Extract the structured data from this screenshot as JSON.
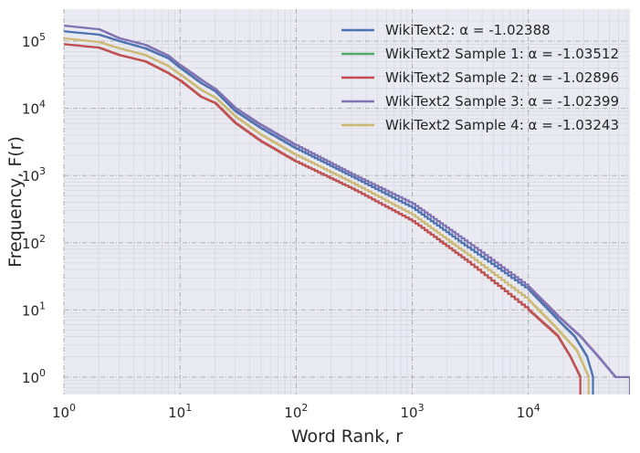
{
  "chart_data": {
    "type": "line",
    "title": "",
    "xlabel": "Word Rank, r",
    "ylabel": "Frequency, F(r)",
    "xscale": "log",
    "yscale": "log",
    "xlim": [
      1,
      75000
    ],
    "ylim": [
      0.55,
      300000
    ],
    "grid": true,
    "legend_position": "top-right",
    "x_ticks": [
      1,
      10,
      100,
      1000,
      10000
    ],
    "x_tick_labels": [
      "10",
      "10",
      "10",
      "10",
      "10"
    ],
    "x_tick_exponents": [
      "0",
      "1",
      "2",
      "3",
      "4"
    ],
    "y_ticks": [
      1,
      10,
      100,
      1000,
      10000,
      100000
    ],
    "y_tick_labels": [
      "10",
      "10",
      "10",
      "10",
      "10",
      "10"
    ],
    "y_tick_exponents": [
      "0",
      "1",
      "2",
      "3",
      "4",
      "5"
    ],
    "colors": {
      "plot_background": "#eaeaf2",
      "major_grid": "#a8a8a8",
      "minor_grid": "#d6d6df"
    },
    "series": [
      {
        "name": "WikiText2: α = -1.02388",
        "color": "#4c72b0",
        "points": [
          [
            1,
            140000
          ],
          [
            2,
            125000
          ],
          [
            3,
            100000
          ],
          [
            5,
            78000
          ],
          [
            8,
            55000
          ],
          [
            10,
            40000
          ],
          [
            15,
            24000
          ],
          [
            20,
            18000
          ],
          [
            30,
            9000
          ],
          [
            50,
            5000
          ],
          [
            100,
            2500
          ],
          [
            300,
            960
          ],
          [
            1000,
            330
          ],
          [
            3000,
            85
          ],
          [
            10000,
            20
          ],
          [
            18000,
            7
          ],
          [
            25000,
            4
          ],
          [
            32000,
            2
          ],
          [
            36000,
            1
          ]
        ]
      },
      {
        "name": "WikiText2 Sample 1: α = -1.03512",
        "color": "#55a868",
        "points": [
          [
            1,
            90000
          ],
          [
            2,
            80000
          ],
          [
            3,
            62000
          ],
          [
            5,
            50000
          ],
          [
            8,
            33000
          ],
          [
            10,
            26000
          ],
          [
            15,
            15000
          ],
          [
            20,
            12000
          ],
          [
            30,
            6000
          ],
          [
            50,
            3200
          ],
          [
            100,
            1600
          ],
          [
            300,
            640
          ],
          [
            1000,
            210
          ],
          [
            3000,
            52
          ],
          [
            10000,
            10
          ],
          [
            18000,
            4
          ],
          [
            23000,
            2
          ],
          [
            28000,
            1
          ]
        ]
      },
      {
        "name": "WikiText2 Sample 2: α = -1.02896",
        "color": "#c44e52",
        "points": [
          [
            1,
            90000
          ],
          [
            2,
            80000
          ],
          [
            3,
            62000
          ],
          [
            5,
            50000
          ],
          [
            8,
            33000
          ],
          [
            10,
            26000
          ],
          [
            15,
            15000
          ],
          [
            20,
            12000
          ],
          [
            30,
            6000
          ],
          [
            50,
            3200
          ],
          [
            100,
            1600
          ],
          [
            300,
            640
          ],
          [
            1000,
            210
          ],
          [
            3000,
            52
          ],
          [
            10000,
            10
          ],
          [
            18000,
            4
          ],
          [
            23000,
            2
          ],
          [
            28000,
            1
          ]
        ]
      },
      {
        "name": "WikiText2 Sample 3: α = -1.02399",
        "color": "#8172b2",
        "points": [
          [
            1,
            170000
          ],
          [
            2,
            150000
          ],
          [
            3,
            110000
          ],
          [
            5,
            88000
          ],
          [
            8,
            60000
          ],
          [
            10,
            44000
          ],
          [
            15,
            27000
          ],
          [
            20,
            19500
          ],
          [
            30,
            10000
          ],
          [
            50,
            5600
          ],
          [
            100,
            2800
          ],
          [
            300,
            1050
          ],
          [
            1000,
            380
          ],
          [
            3000,
            100
          ],
          [
            10000,
            22
          ],
          [
            18000,
            8
          ],
          [
            28000,
            4
          ],
          [
            40000,
            2
          ],
          [
            56000,
            1
          ],
          [
            75000,
            1
          ]
        ]
      },
      {
        "name": "WikiText2 Sample 4: α = -1.03243",
        "color": "#ccb974",
        "points": [
          [
            1,
            110000
          ],
          [
            2,
            97000
          ],
          [
            3,
            78000
          ],
          [
            5,
            62000
          ],
          [
            8,
            42000
          ],
          [
            10,
            32000
          ],
          [
            15,
            19000
          ],
          [
            20,
            14500
          ],
          [
            30,
            7500
          ],
          [
            50,
            4000
          ],
          [
            100,
            2000
          ],
          [
            300,
            780
          ],
          [
            1000,
            260
          ],
          [
            3000,
            66
          ],
          [
            10000,
            14
          ],
          [
            18000,
            5
          ],
          [
            26000,
            2.5
          ],
          [
            33000,
            1
          ]
        ]
      }
    ]
  }
}
